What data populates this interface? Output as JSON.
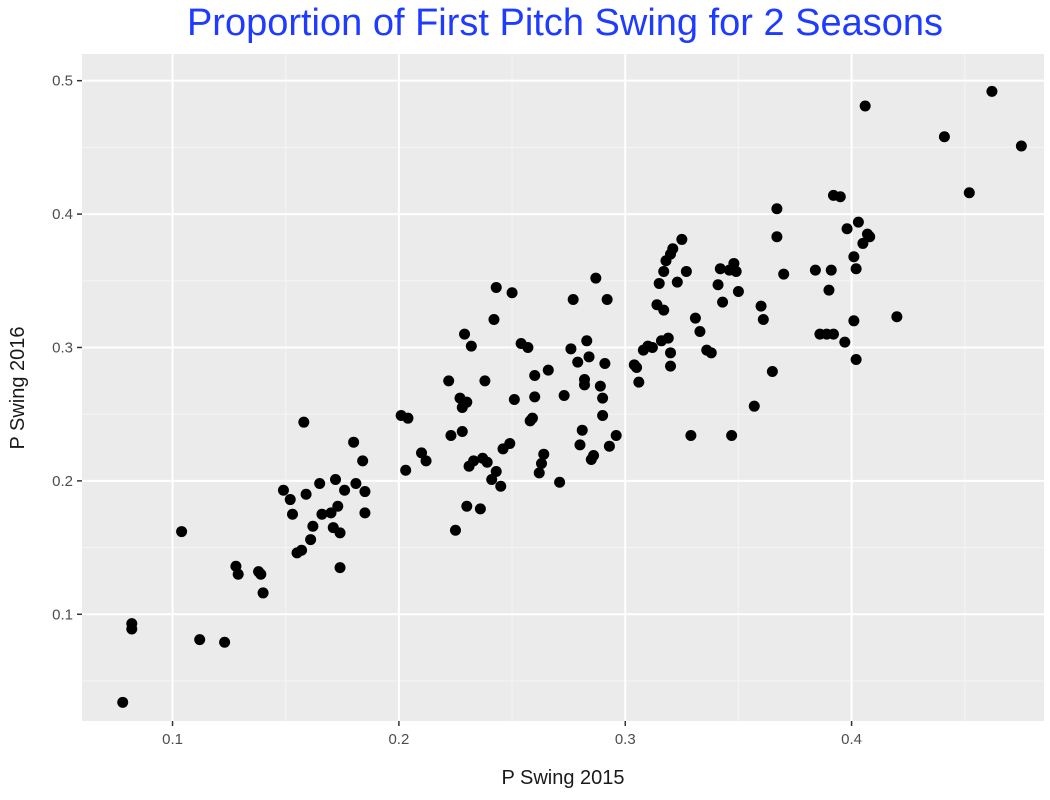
{
  "chart_data": {
    "type": "scatter",
    "title": "Proportion of First Pitch Swing for 2 Seasons",
    "title_color": "#1f3bff",
    "xlabel": "P Swing 2015",
    "ylabel": "P Swing 2016",
    "xlim": [
      0.06,
      0.485
    ],
    "ylim": [
      0.02,
      0.52
    ],
    "x_ticks": [
      0.1,
      0.2,
      0.3,
      0.4
    ],
    "x_tick_labels": [
      "0.1",
      "0.2",
      "0.3",
      "0.4"
    ],
    "y_ticks": [
      0.1,
      0.2,
      0.3,
      0.4,
      0.5
    ],
    "y_tick_labels": [
      "0.1",
      "0.2",
      "0.3",
      "0.4",
      "0.5"
    ],
    "grid": true,
    "panel_background": "#ebebeb",
    "point_color": "#000000",
    "points": [
      [
        0.078,
        0.034
      ],
      [
        0.082,
        0.089
      ],
      [
        0.082,
        0.093
      ],
      [
        0.104,
        0.162
      ],
      [
        0.112,
        0.081
      ],
      [
        0.123,
        0.079
      ],
      [
        0.128,
        0.136
      ],
      [
        0.129,
        0.13
      ],
      [
        0.138,
        0.132
      ],
      [
        0.139,
        0.13
      ],
      [
        0.14,
        0.116
      ],
      [
        0.149,
        0.193
      ],
      [
        0.152,
        0.186
      ],
      [
        0.153,
        0.175
      ],
      [
        0.155,
        0.146
      ],
      [
        0.157,
        0.148
      ],
      [
        0.158,
        0.244
      ],
      [
        0.159,
        0.19
      ],
      [
        0.161,
        0.156
      ],
      [
        0.162,
        0.166
      ],
      [
        0.165,
        0.198
      ],
      [
        0.166,
        0.175
      ],
      [
        0.17,
        0.176
      ],
      [
        0.171,
        0.165
      ],
      [
        0.172,
        0.201
      ],
      [
        0.173,
        0.181
      ],
      [
        0.174,
        0.135
      ],
      [
        0.174,
        0.161
      ],
      [
        0.176,
        0.193
      ],
      [
        0.18,
        0.229
      ],
      [
        0.181,
        0.198
      ],
      [
        0.184,
        0.215
      ],
      [
        0.185,
        0.192
      ],
      [
        0.185,
        0.176
      ],
      [
        0.201,
        0.249
      ],
      [
        0.203,
        0.208
      ],
      [
        0.204,
        0.247
      ],
      [
        0.21,
        0.221
      ],
      [
        0.212,
        0.215
      ],
      [
        0.222,
        0.275
      ],
      [
        0.223,
        0.234
      ],
      [
        0.225,
        0.163
      ],
      [
        0.227,
        0.262
      ],
      [
        0.228,
        0.237
      ],
      [
        0.228,
        0.255
      ],
      [
        0.229,
        0.31
      ],
      [
        0.23,
        0.259
      ],
      [
        0.23,
        0.181
      ],
      [
        0.231,
        0.211
      ],
      [
        0.232,
        0.301
      ],
      [
        0.233,
        0.215
      ],
      [
        0.236,
        0.179
      ],
      [
        0.237,
        0.217
      ],
      [
        0.238,
        0.275
      ],
      [
        0.239,
        0.214
      ],
      [
        0.241,
        0.201
      ],
      [
        0.242,
        0.321
      ],
      [
        0.243,
        0.345
      ],
      [
        0.243,
        0.207
      ],
      [
        0.245,
        0.196
      ],
      [
        0.246,
        0.224
      ],
      [
        0.249,
        0.228
      ],
      [
        0.25,
        0.341
      ],
      [
        0.251,
        0.261
      ],
      [
        0.254,
        0.303
      ],
      [
        0.257,
        0.3
      ],
      [
        0.258,
        0.245
      ],
      [
        0.259,
        0.247
      ],
      [
        0.26,
        0.279
      ],
      [
        0.26,
        0.263
      ],
      [
        0.262,
        0.206
      ],
      [
        0.263,
        0.213
      ],
      [
        0.264,
        0.22
      ],
      [
        0.266,
        0.283
      ],
      [
        0.271,
        0.199
      ],
      [
        0.273,
        0.264
      ],
      [
        0.276,
        0.299
      ],
      [
        0.277,
        0.336
      ],
      [
        0.279,
        0.289
      ],
      [
        0.28,
        0.227
      ],
      [
        0.281,
        0.238
      ],
      [
        0.282,
        0.276
      ],
      [
        0.282,
        0.272
      ],
      [
        0.283,
        0.305
      ],
      [
        0.284,
        0.293
      ],
      [
        0.285,
        0.216
      ],
      [
        0.286,
        0.219
      ],
      [
        0.287,
        0.352
      ],
      [
        0.289,
        0.271
      ],
      [
        0.29,
        0.249
      ],
      [
        0.29,
        0.262
      ],
      [
        0.291,
        0.288
      ],
      [
        0.292,
        0.336
      ],
      [
        0.293,
        0.226
      ],
      [
        0.296,
        0.234
      ],
      [
        0.304,
        0.287
      ],
      [
        0.305,
        0.285
      ],
      [
        0.306,
        0.274
      ],
      [
        0.308,
        0.298
      ],
      [
        0.31,
        0.301
      ],
      [
        0.312,
        0.3
      ],
      [
        0.314,
        0.332
      ],
      [
        0.315,
        0.348
      ],
      [
        0.316,
        0.305
      ],
      [
        0.317,
        0.328
      ],
      [
        0.317,
        0.357
      ],
      [
        0.318,
        0.365
      ],
      [
        0.319,
        0.307
      ],
      [
        0.32,
        0.286
      ],
      [
        0.32,
        0.296
      ],
      [
        0.32,
        0.37
      ],
      [
        0.321,
        0.374
      ],
      [
        0.323,
        0.349
      ],
      [
        0.325,
        0.381
      ],
      [
        0.327,
        0.357
      ],
      [
        0.329,
        0.234
      ],
      [
        0.331,
        0.322
      ],
      [
        0.333,
        0.312
      ],
      [
        0.336,
        0.298
      ],
      [
        0.338,
        0.296
      ],
      [
        0.341,
        0.347
      ],
      [
        0.342,
        0.359
      ],
      [
        0.343,
        0.334
      ],
      [
        0.346,
        0.358
      ],
      [
        0.347,
        0.234
      ],
      [
        0.348,
        0.363
      ],
      [
        0.349,
        0.357
      ],
      [
        0.35,
        0.342
      ],
      [
        0.357,
        0.256
      ],
      [
        0.36,
        0.331
      ],
      [
        0.361,
        0.321
      ],
      [
        0.365,
        0.282
      ],
      [
        0.367,
        0.383
      ],
      [
        0.367,
        0.404
      ],
      [
        0.37,
        0.355
      ],
      [
        0.384,
        0.358
      ],
      [
        0.386,
        0.31
      ],
      [
        0.389,
        0.31
      ],
      [
        0.39,
        0.343
      ],
      [
        0.391,
        0.358
      ],
      [
        0.392,
        0.31
      ],
      [
        0.392,
        0.414
      ],
      [
        0.395,
        0.413
      ],
      [
        0.397,
        0.304
      ],
      [
        0.398,
        0.389
      ],
      [
        0.401,
        0.32
      ],
      [
        0.401,
        0.368
      ],
      [
        0.402,
        0.291
      ],
      [
        0.402,
        0.359
      ],
      [
        0.403,
        0.394
      ],
      [
        0.405,
        0.378
      ],
      [
        0.406,
        0.481
      ],
      [
        0.407,
        0.385
      ],
      [
        0.408,
        0.383
      ],
      [
        0.42,
        0.323
      ],
      [
        0.441,
        0.458
      ],
      [
        0.452,
        0.416
      ],
      [
        0.462,
        0.492
      ],
      [
        0.475,
        0.451
      ]
    ]
  }
}
